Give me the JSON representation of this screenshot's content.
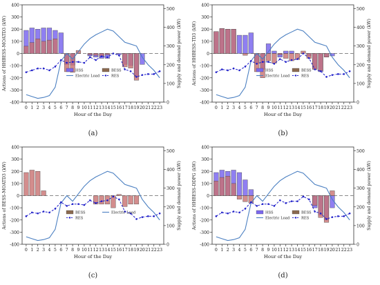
{
  "figure": {
    "panels": [
      {
        "ylabel": "Actions of HHBESS-MOATD3 (kW)",
        "caption": "(a)"
      },
      {
        "ylabel": "Actions of HHBESS-TD3 (kW)",
        "caption": "(b)"
      },
      {
        "ylabel": "Actions of BESS-MOATD3 (kW)",
        "caption": "(c)"
      },
      {
        "ylabel": "Actions of HHBESS-DDPG (kW)",
        "caption": "(d)"
      }
    ],
    "xlabel": "Hour of the Day",
    "ylabel_right": "Supply and demand power (kW)",
    "colors": {
      "hss": "#7b68ee",
      "bess": "#c87070",
      "bess_dark": "#8b6a50",
      "electric_load": "#4a7fc1",
      "res": "#1f1fc9",
      "zero_line": "#888888"
    }
  },
  "chart_data": [
    {
      "type": "bar",
      "title": "",
      "caption": "(a)",
      "ylabel": "Actions of HHBESS-MOATD3 (kW)",
      "ylabel_right": "Supply and demand power (kW)",
      "xlabel": "Hour of the Day",
      "categories": [
        "0",
        "1",
        "2",
        "3",
        "4",
        "5",
        "6",
        "7",
        "8",
        "9",
        "10",
        "11",
        "12",
        "13",
        "14",
        "15",
        "16",
        "17",
        "18",
        "19",
        "20",
        "21",
        "22",
        "23"
      ],
      "ylim": [
        -400,
        400
      ],
      "y2lim": [
        0,
        520
      ],
      "legend": [
        "HSS",
        "BESS",
        "Electric Load",
        "RES"
      ],
      "legend_position": "bottom-center",
      "series": [
        {
          "name": "HSS",
          "kind": "bar",
          "values": [
            190,
            210,
            200,
            210,
            210,
            190,
            170,
            -90,
            -95,
            0,
            0,
            -20,
            -30,
            -40,
            -40,
            0,
            -10,
            -90,
            -100,
            -190,
            -90,
            0,
            0,
            0
          ]
        },
        {
          "name": "BESS",
          "kind": "bar",
          "values": [
            60,
            90,
            120,
            100,
            110,
            120,
            0,
            -150,
            -155,
            25,
            0,
            -10,
            -15,
            -20,
            -10,
            0,
            0,
            -110,
            -120,
            -220,
            0,
            0,
            0,
            0
          ]
        },
        {
          "name": "Electric Load",
          "kind": "line",
          "axis": "right",
          "values": [
            40,
            30,
            20,
            25,
            35,
            80,
            220,
            260,
            230,
            270,
            310,
            340,
            360,
            375,
            390,
            380,
            350,
            320,
            310,
            300,
            240,
            200,
            170,
            130
          ]
        },
        {
          "name": "RES",
          "kind": "line",
          "axis": "right",
          "values": [
            160,
            170,
            180,
            180,
            170,
            190,
            225,
            210,
            215,
            215,
            210,
            240,
            225,
            245,
            240,
            260,
            250,
            175,
            165,
            135,
            145,
            150,
            150,
            165
          ]
        }
      ]
    },
    {
      "type": "bar",
      "title": "",
      "caption": "(b)",
      "ylabel": "Actions of HHBESS-TD3 (kW)",
      "ylabel_right": "Supply and demand power (kW)",
      "xlabel": "Hour of the Day",
      "categories": [
        "0",
        "1",
        "2",
        "3",
        "4",
        "5",
        "6",
        "7",
        "8",
        "9",
        "10",
        "11",
        "12",
        "13",
        "14",
        "15",
        "16",
        "17",
        "18",
        "19",
        "20",
        "21",
        "22",
        "23"
      ],
      "ylim": [
        -400,
        400
      ],
      "y2lim": [
        0,
        520
      ],
      "legend": [
        "HSS",
        "BESS",
        "Electric Load",
        "RES"
      ],
      "legend_position": "bottom-center",
      "series": [
        {
          "name": "HSS",
          "kind": "bar",
          "values": [
            180,
            205,
            200,
            200,
            150,
            150,
            170,
            -80,
            -130,
            80,
            20,
            -30,
            20,
            20,
            0,
            0,
            -20,
            -130,
            -150,
            -30,
            -20,
            0,
            0,
            0
          ]
        },
        {
          "name": "BESS",
          "kind": "bar",
          "values": [
            180,
            205,
            200,
            200,
            0,
            -15,
            0,
            -150,
            -200,
            -60,
            -80,
            -10,
            -40,
            -60,
            -50,
            20,
            -40,
            -130,
            -140,
            -30,
            0,
            0,
            0,
            0
          ]
        },
        {
          "name": "Electric Load",
          "kind": "line",
          "axis": "right",
          "values": [
            40,
            30,
            20,
            25,
            35,
            80,
            220,
            260,
            230,
            270,
            310,
            340,
            360,
            375,
            390,
            380,
            350,
            320,
            310,
            300,
            240,
            200,
            170,
            130
          ]
        },
        {
          "name": "RES",
          "kind": "line",
          "axis": "right",
          "values": [
            160,
            175,
            170,
            180,
            170,
            190,
            220,
            205,
            215,
            215,
            205,
            230,
            215,
            225,
            230,
            260,
            235,
            175,
            165,
            135,
            145,
            150,
            150,
            165
          ]
        }
      ]
    },
    {
      "type": "bar",
      "title": "",
      "caption": "(c)",
      "ylabel": "Actions of BESS-MOATD3 (kW)",
      "ylabel_right": "Supply and demand power (kW)",
      "xlabel": "Hour of the Day",
      "categories": [
        "0",
        "1",
        "2",
        "3",
        "4",
        "5",
        "6",
        "7",
        "8",
        "9",
        "10",
        "11",
        "12",
        "13",
        "14",
        "15",
        "16",
        "17",
        "18",
        "19",
        "20",
        "21",
        "22",
        "23"
      ],
      "ylim": [
        -400,
        400
      ],
      "y2lim": [
        0,
        520
      ],
      "legend": [
        "BESS",
        "Electric Load",
        "RES"
      ],
      "legend_position": "bottom-center",
      "series": [
        {
          "name": "BESS",
          "kind": "bar",
          "values": [
            190,
            210,
            200,
            40,
            0,
            0,
            0,
            0,
            0,
            0,
            0,
            0,
            -70,
            -70,
            -70,
            -100,
            10,
            -90,
            -70,
            -70,
            0,
            0,
            0,
            0
          ]
        },
        {
          "name": "Electric Load",
          "kind": "line",
          "axis": "right",
          "values": [
            40,
            30,
            20,
            25,
            35,
            80,
            220,
            260,
            230,
            270,
            310,
            340,
            360,
            375,
            390,
            380,
            350,
            320,
            310,
            300,
            240,
            200,
            170,
            130
          ]
        },
        {
          "name": "RES",
          "kind": "line",
          "axis": "right",
          "values": [
            150,
            170,
            165,
            175,
            170,
            190,
            225,
            205,
            215,
            215,
            210,
            235,
            220,
            230,
            235,
            255,
            240,
            175,
            165,
            135,
            145,
            150,
            150,
            165
          ]
        }
      ]
    },
    {
      "type": "bar",
      "title": "",
      "caption": "(d)",
      "ylabel": "Actions of HHBESS-DDPG (kW)",
      "ylabel_right": "Supply and demand power (kW)",
      "xlabel": "Hour of the Day",
      "categories": [
        "0",
        "1",
        "2",
        "3",
        "4",
        "5",
        "6",
        "7",
        "8",
        "9",
        "10",
        "11",
        "12",
        "13",
        "14",
        "15",
        "16",
        "17",
        "18",
        "19",
        "20",
        "21",
        "22",
        "23"
      ],
      "ylim": [
        -400,
        400
      ],
      "y2lim": [
        0,
        520
      ],
      "legend": [
        "HSS",
        "BESS",
        "Electric Load",
        "RES"
      ],
      "legend_position": "bottom-center",
      "series": [
        {
          "name": "HSS",
          "kind": "bar",
          "values": [
            190,
            210,
            200,
            210,
            190,
            130,
            50,
            0,
            0,
            0,
            0,
            0,
            0,
            0,
            0,
            0,
            0,
            -100,
            -160,
            -200,
            -100,
            0,
            0,
            0
          ]
        },
        {
          "name": "BESS",
          "kind": "bar",
          "values": [
            120,
            150,
            160,
            100,
            -30,
            -50,
            -60,
            0,
            0,
            0,
            0,
            0,
            0,
            0,
            0,
            0,
            0,
            -80,
            -180,
            -220,
            40,
            0,
            0,
            0
          ]
        },
        {
          "name": "Electric Load",
          "kind": "line",
          "axis": "right",
          "values": [
            40,
            30,
            20,
            25,
            35,
            80,
            220,
            260,
            230,
            270,
            310,
            340,
            360,
            375,
            390,
            380,
            350,
            320,
            310,
            300,
            240,
            200,
            170,
            130
          ]
        },
        {
          "name": "RES",
          "kind": "line",
          "axis": "right",
          "values": [
            150,
            170,
            165,
            175,
            170,
            190,
            225,
            205,
            215,
            215,
            205,
            235,
            220,
            230,
            230,
            255,
            240,
            175,
            165,
            135,
            145,
            150,
            150,
            165
          ]
        }
      ]
    }
  ]
}
